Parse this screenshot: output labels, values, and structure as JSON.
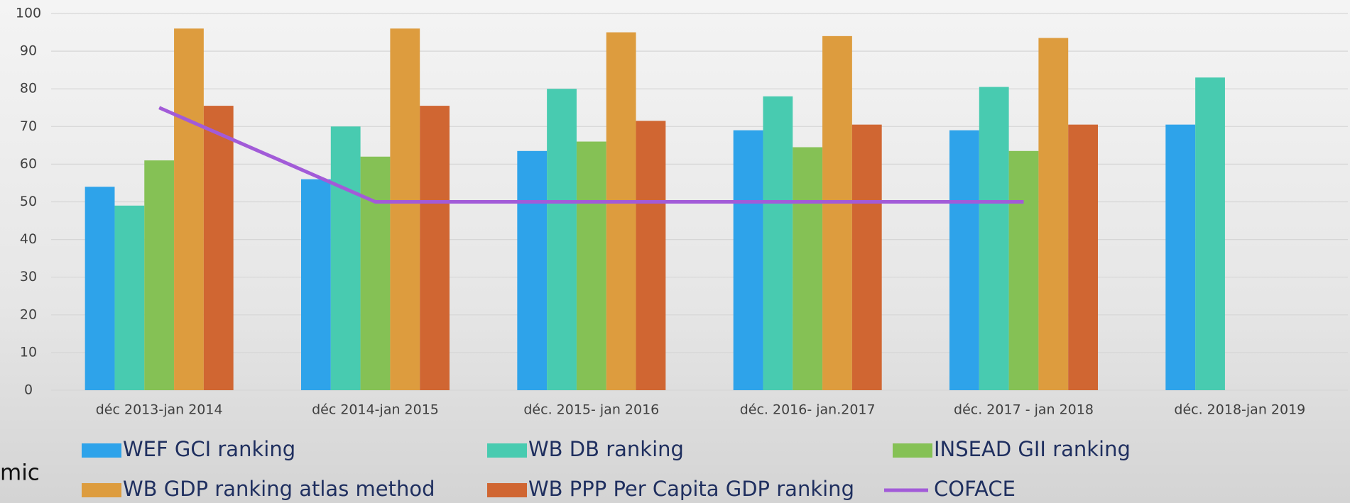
{
  "chart_data": {
    "type": "bar",
    "categories": [
      "déc 2013-jan 2014",
      "déc 2014-jan 2015",
      "déc. 2015- jan 2016",
      "déc. 2016- jan.2017",
      "déc. 2017 - jan 2018",
      "déc. 2018-jan 2019"
    ],
    "series": [
      {
        "name": "WEF GCI ranking",
        "color": "#2ea3ea",
        "values": [
          54,
          56,
          63.5,
          69,
          69,
          70.5
        ]
      },
      {
        "name": "WB DB ranking",
        "color": "#48cbb0",
        "values": [
          49,
          70,
          80,
          78,
          80.5,
          83
        ]
      },
      {
        "name": "INSEAD GII ranking",
        "color": "#85c155",
        "values": [
          61,
          62,
          66,
          64.5,
          63.5,
          null
        ]
      },
      {
        "name": "WB GDP ranking atlas method",
        "color": "#dd9c3e",
        "values": [
          96,
          96,
          95,
          94,
          93.5,
          null
        ]
      },
      {
        "name": "WB PPP Per Capita GDP ranking",
        "color": "#d06632",
        "values": [
          75.5,
          75.5,
          71.5,
          70.5,
          70.5,
          null
        ]
      },
      {
        "name": "COFACE",
        "color": "#a25bd8",
        "type": "line",
        "values": [
          75,
          50,
          50,
          50,
          50,
          null
        ]
      }
    ],
    "ylim": [
      0,
      100
    ],
    "yticks": [
      0,
      10,
      20,
      30,
      40,
      50,
      60,
      70,
      80,
      90,
      100
    ],
    "grid": true,
    "overlay_text": "mic"
  }
}
